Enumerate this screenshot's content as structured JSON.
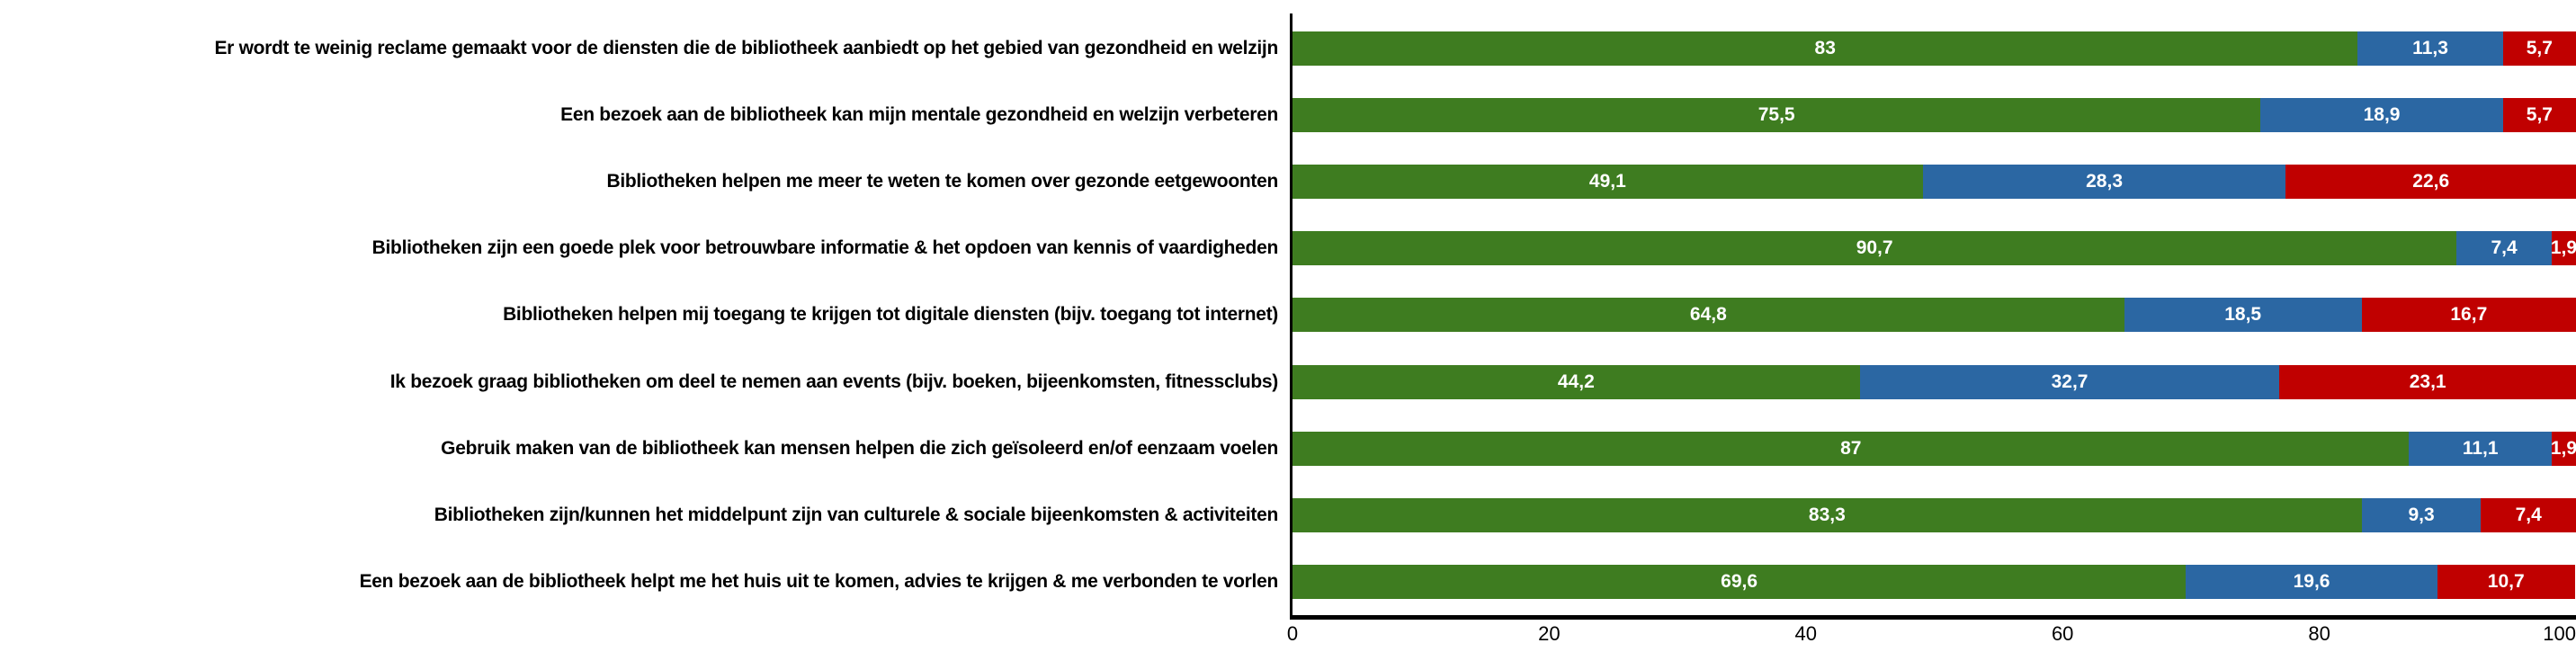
{
  "chart_data": {
    "type": "bar",
    "orientation": "horizontal",
    "stacked": true,
    "title": "",
    "categories": [
      "Er wordt te weinig reclame gemaakt voor de diensten die de bibliotheek aanbiedt op het gebied van gezondheid en welzijn",
      "Een bezoek aan de bibliotheek kan mijn mentale gezondheid en welzijn verbeteren",
      "Bibliotheken helpen me meer te weten te komen over gezonde eetgewoonten",
      "Bibliotheken zijn een goede plek voor betrouwbare informatie & het opdoen van kennis of vaardigheden",
      "Bibliotheken helpen mij toegang te krijgen tot digitale diensten (bijv. toegang tot internet)",
      "Ik bezoek graag bibliotheken om deel te nemen aan events (bijv. boeken, bijeenkomsten, fitnessclubs)",
      "Gebruik maken van de bibliotheek kan mensen helpen die zich geïsoleerd en/of eenzaam voelen",
      "Bibliotheken zijn/kunnen het middelpunt zijn van culturele & sociale bijeenkomsten & activiteiten",
      "Een bezoek aan de bibliotheek helpt me het huis uit te komen, advies te krijgen & me verbonden te vorlen"
    ],
    "series": [
      {
        "name": "green",
        "color": "#3E7C20",
        "values": [
          83,
          75.5,
          49.1,
          90.7,
          64.8,
          44.2,
          87,
          83.3,
          69.6
        ],
        "display_values": [
          "83",
          "75,5",
          "49,1",
          "90,7",
          "64,8",
          "44,2",
          "87",
          "83,3",
          "69,6"
        ]
      },
      {
        "name": "blue",
        "color": "#2B67A3",
        "values": [
          11.3,
          18.9,
          28.3,
          7.4,
          18.5,
          32.7,
          11.1,
          9.3,
          19.6
        ],
        "display_values": [
          "11,3",
          "18,9",
          "28,3",
          "7,4",
          "18,5",
          "32,7",
          "11,1",
          "9,3",
          "19,6"
        ]
      },
      {
        "name": "red",
        "color": "#C00000",
        "values": [
          5.7,
          5.7,
          22.6,
          1.9,
          16.7,
          23.1,
          1.9,
          7.4,
          10.7
        ],
        "display_values": [
          "5,7",
          "5,7",
          "22,6",
          "1,9",
          "16,7",
          "23,1",
          "1,9",
          "7,4",
          "10,7"
        ]
      }
    ],
    "x_axis": {
      "min": 0,
      "max": 100,
      "tick_values": [
        0,
        20,
        40,
        60,
        80,
        100
      ],
      "tick_labels": [
        "0",
        "20",
        "40",
        "60",
        "80",
        "100"
      ]
    },
    "value_label_color": "#FFFFFF",
    "axis_color": "#000000",
    "grid": false,
    "legend": "none"
  }
}
